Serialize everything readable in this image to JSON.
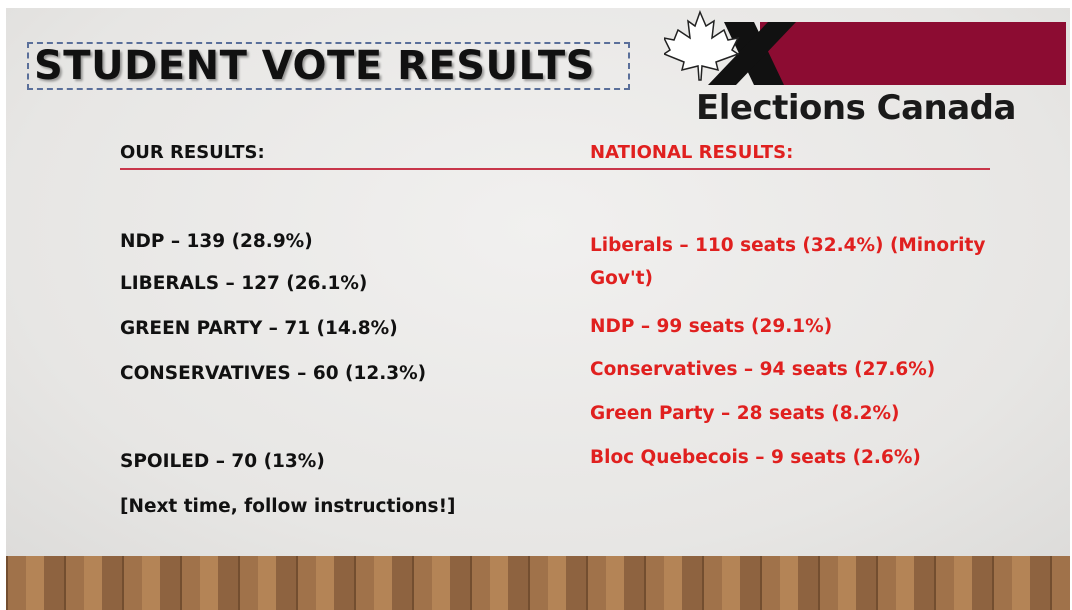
{
  "slide": {
    "title": "STUDENT VOTE RESULTS",
    "logo_text": "Elections Canada",
    "left": {
      "header": "OUR RESULTS:",
      "items": [
        "NDP – 139 (28.9%)",
        "LIBERALS – 127 (26.1%)",
        "GREEN PARTY – 71 (14.8%)",
        "CONSERVATIVES – 60 (12.3%)"
      ],
      "spoiled": "SPOILED – 70 (13%)",
      "note": "[Next time, follow instructions!]"
    },
    "right": {
      "header": "NATIONAL RESULTS:",
      "items": [
        "Liberals – 110 seats (32.4%) (Minority Gov't)",
        "NDP – 99 seats (29.1%)",
        "Conservatives – 94 seats (27.6%)",
        "Green Party – 28 seats (8.2%)",
        "Bloc Quebecois – 9 seats (2.6%)"
      ]
    }
  }
}
